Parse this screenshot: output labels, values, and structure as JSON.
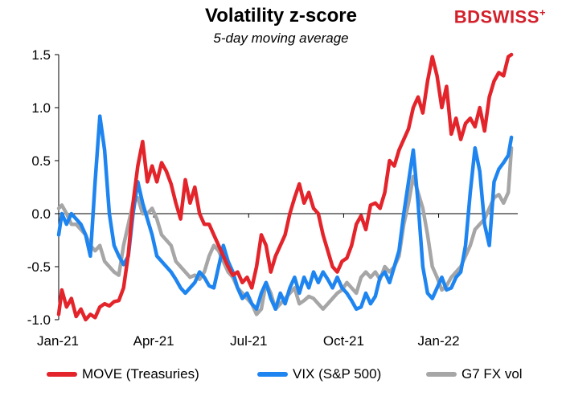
{
  "header": {
    "title": "Volatility z-score",
    "subtitle": "5-day moving average",
    "logo_left": "BD",
    "logo_right": "SWISS",
    "logo_mark": "+"
  },
  "chart_data": {
    "type": "line",
    "title": "Volatility z-score",
    "subtitle": "5-day moving average",
    "xlabel": "",
    "ylabel": "",
    "ylim": [
      -1.0,
      1.5
    ],
    "yticks": [
      -1.0,
      -0.5,
      0.0,
      0.5,
      1.0,
      1.5
    ],
    "ytick_labels": [
      "-1.0",
      "-0.5",
      "0.0",
      "0.5",
      "1.0",
      "1.5"
    ],
    "xlim": [
      0,
      14.5
    ],
    "xticks": [
      0,
      3,
      6,
      9,
      12
    ],
    "xtick_labels": [
      "Jan-21",
      "Apr-21",
      "Jul-21",
      "Oct-21",
      "Jan-22"
    ],
    "x_unit": "months since Jan-21",
    "legend_position": "bottom",
    "series": [
      {
        "name": "MOVE (Treasuries)",
        "color": "#e3242b",
        "x": [
          0,
          0.1,
          0.25,
          0.4,
          0.55,
          0.7,
          0.85,
          1.0,
          1.15,
          1.3,
          1.45,
          1.6,
          1.75,
          1.9,
          2.05,
          2.2,
          2.35,
          2.5,
          2.65,
          2.8,
          2.95,
          3.1,
          3.25,
          3.4,
          3.55,
          3.7,
          3.85,
          4.0,
          4.15,
          4.3,
          4.45,
          4.6,
          4.75,
          4.9,
          5.05,
          5.2,
          5.35,
          5.5,
          5.65,
          5.8,
          5.95,
          6.1,
          6.25,
          6.4,
          6.55,
          6.7,
          6.85,
          7.0,
          7.15,
          7.3,
          7.45,
          7.6,
          7.75,
          7.9,
          8.05,
          8.2,
          8.35,
          8.5,
          8.65,
          8.8,
          8.95,
          9.1,
          9.25,
          9.4,
          9.55,
          9.7,
          9.85,
          10.0,
          10.15,
          10.3,
          10.45,
          10.6,
          10.75,
          10.9,
          11.05,
          11.2,
          11.35,
          11.5,
          11.65,
          11.8,
          11.95,
          12.1,
          12.25,
          12.4,
          12.55,
          12.7,
          12.85,
          13.0,
          13.15,
          13.3,
          13.45,
          13.6,
          13.75,
          13.9,
          14.05,
          14.2,
          14.3
        ],
        "values": [
          -0.95,
          -0.72,
          -0.88,
          -0.8,
          -0.97,
          -0.9,
          -1.0,
          -0.95,
          -0.98,
          -0.88,
          -0.85,
          -0.87,
          -0.83,
          -0.82,
          -0.7,
          -0.38,
          0.1,
          0.45,
          0.68,
          0.3,
          0.45,
          0.3,
          0.48,
          0.4,
          0.28,
          0.1,
          -0.05,
          0.32,
          0.1,
          0.25,
          0.0,
          -0.1,
          -0.1,
          -0.2,
          -0.3,
          -0.4,
          -0.5,
          -0.58,
          -0.55,
          -0.65,
          -0.6,
          -0.7,
          -0.5,
          -0.2,
          -0.3,
          -0.55,
          -0.4,
          -0.3,
          -0.2,
          0.0,
          0.15,
          0.28,
          0.1,
          0.2,
          0.05,
          0.0,
          -0.2,
          -0.35,
          -0.5,
          -0.55,
          -0.45,
          -0.42,
          -0.3,
          -0.1,
          -0.02,
          -0.15,
          0.08,
          0.1,
          0.05,
          0.2,
          0.5,
          0.45,
          0.6,
          0.7,
          0.8,
          1.0,
          1.1,
          0.95,
          1.25,
          1.48,
          1.3,
          1.0,
          1.2,
          0.75,
          0.9,
          0.7,
          0.85,
          0.9,
          0.82,
          1.0,
          0.78,
          1.1,
          1.25,
          1.33,
          1.3,
          1.48,
          1.5
        ]
      },
      {
        "name": "VIX (S&P 500)",
        "color": "#1e85f0",
        "x": [
          0,
          0.1,
          0.25,
          0.4,
          0.55,
          0.7,
          0.85,
          1.0,
          1.15,
          1.3,
          1.45,
          1.6,
          1.75,
          1.9,
          2.05,
          2.2,
          2.35,
          2.5,
          2.65,
          2.8,
          2.95,
          3.1,
          3.25,
          3.4,
          3.55,
          3.7,
          3.85,
          4.0,
          4.15,
          4.3,
          4.45,
          4.6,
          4.75,
          4.9,
          5.05,
          5.2,
          5.35,
          5.5,
          5.65,
          5.8,
          5.95,
          6.1,
          6.25,
          6.4,
          6.55,
          6.7,
          6.85,
          7.0,
          7.15,
          7.3,
          7.45,
          7.6,
          7.75,
          7.9,
          8.05,
          8.2,
          8.35,
          8.5,
          8.65,
          8.8,
          8.95,
          9.1,
          9.25,
          9.4,
          9.55,
          9.7,
          9.85,
          10.0,
          10.15,
          10.3,
          10.45,
          10.6,
          10.75,
          10.9,
          11.05,
          11.2,
          11.35,
          11.5,
          11.65,
          11.8,
          11.95,
          12.1,
          12.25,
          12.4,
          12.55,
          12.7,
          12.85,
          13.0,
          13.15,
          13.3,
          13.45,
          13.6,
          13.75,
          13.9,
          14.05,
          14.2,
          14.3
        ],
        "values": [
          -0.2,
          0.0,
          -0.1,
          0.0,
          -0.05,
          -0.1,
          -0.2,
          -0.4,
          0.3,
          0.92,
          0.6,
          0.0,
          -0.3,
          -0.4,
          -0.48,
          -0.4,
          0.0,
          0.3,
          0.1,
          -0.05,
          -0.2,
          -0.4,
          -0.45,
          -0.5,
          -0.55,
          -0.62,
          -0.7,
          -0.75,
          -0.7,
          -0.65,
          -0.55,
          -0.6,
          -0.68,
          -0.7,
          -0.5,
          -0.3,
          -0.45,
          -0.55,
          -0.7,
          -0.8,
          -0.75,
          -0.85,
          -0.9,
          -0.75,
          -0.65,
          -0.8,
          -0.9,
          -0.75,
          -0.85,
          -0.7,
          -0.6,
          -0.75,
          -0.6,
          -0.7,
          -0.55,
          -0.65,
          -0.55,
          -0.62,
          -0.7,
          -0.6,
          -0.7,
          -0.75,
          -0.82,
          -0.9,
          -0.88,
          -0.75,
          -0.85,
          -0.78,
          -0.6,
          -0.55,
          -0.65,
          -0.5,
          -0.35,
          0.0,
          0.3,
          0.6,
          0.1,
          -0.5,
          -0.75,
          -0.8,
          -0.7,
          -0.6,
          -0.72,
          -0.7,
          -0.6,
          -0.55,
          -0.3,
          0.2,
          0.62,
          0.4,
          -0.1,
          -0.3,
          0.3,
          0.42,
          0.48,
          0.55,
          0.72
        ]
      },
      {
        "name": "G7 FX vol",
        "color": "#a6a6a6",
        "x": [
          0,
          0.1,
          0.25,
          0.4,
          0.55,
          0.7,
          0.85,
          1.0,
          1.15,
          1.3,
          1.45,
          1.6,
          1.75,
          1.9,
          2.05,
          2.2,
          2.35,
          2.5,
          2.65,
          2.8,
          2.95,
          3.1,
          3.25,
          3.4,
          3.55,
          3.7,
          3.85,
          4.0,
          4.15,
          4.3,
          4.45,
          4.6,
          4.75,
          4.9,
          5.05,
          5.2,
          5.35,
          5.5,
          5.65,
          5.8,
          5.95,
          6.1,
          6.25,
          6.4,
          6.55,
          6.7,
          6.85,
          7.0,
          7.15,
          7.3,
          7.45,
          7.6,
          7.75,
          7.9,
          8.05,
          8.2,
          8.35,
          8.5,
          8.65,
          8.8,
          8.95,
          9.1,
          9.25,
          9.4,
          9.55,
          9.7,
          9.85,
          10.0,
          10.15,
          10.3,
          10.45,
          10.6,
          10.75,
          10.9,
          11.05,
          11.2,
          11.35,
          11.5,
          11.65,
          11.8,
          11.95,
          12.1,
          12.25,
          12.4,
          12.55,
          12.7,
          12.85,
          13.0,
          13.15,
          13.3,
          13.45,
          13.6,
          13.75,
          13.9,
          14.05,
          14.2,
          14.3
        ],
        "values": [
          0.05,
          0.08,
          0.0,
          -0.1,
          -0.1,
          -0.15,
          -0.2,
          -0.3,
          -0.35,
          -0.3,
          -0.45,
          -0.5,
          -0.55,
          -0.58,
          -0.3,
          -0.1,
          0.1,
          0.15,
          0.0,
          0.0,
          0.05,
          -0.05,
          -0.2,
          -0.25,
          -0.3,
          -0.45,
          -0.5,
          -0.55,
          -0.6,
          -0.58,
          -0.62,
          -0.55,
          -0.4,
          -0.3,
          -0.35,
          -0.45,
          -0.55,
          -0.6,
          -0.7,
          -0.75,
          -0.8,
          -0.85,
          -0.95,
          -0.9,
          -0.65,
          -0.75,
          -0.9,
          -0.85,
          -0.8,
          -0.75,
          -0.7,
          -0.85,
          -0.82,
          -0.78,
          -0.8,
          -0.85,
          -0.9,
          -0.85,
          -0.8,
          -0.75,
          -0.72,
          -0.65,
          -0.7,
          -0.75,
          -0.6,
          -0.55,
          -0.6,
          -0.55,
          -0.62,
          -0.5,
          -0.55,
          -0.5,
          -0.4,
          -0.1,
          0.1,
          0.35,
          0.2,
          0.05,
          -0.2,
          -0.5,
          -0.6,
          -0.72,
          -0.68,
          -0.6,
          -0.55,
          -0.5,
          -0.4,
          -0.3,
          -0.15,
          -0.1,
          -0.05,
          0.05,
          0.15,
          0.18,
          0.1,
          0.2,
          0.62
        ]
      }
    ]
  }
}
